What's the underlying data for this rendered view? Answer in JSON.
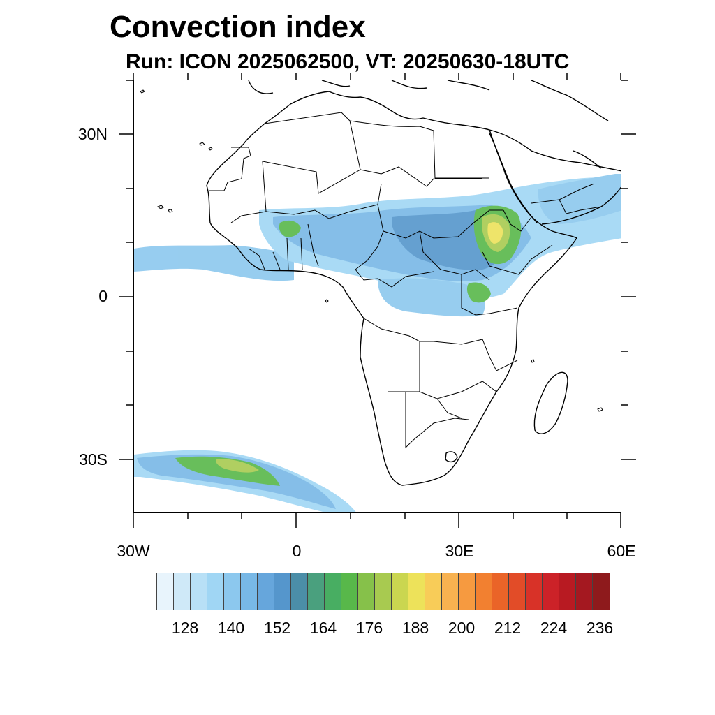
{
  "header": {
    "title": "Convection index",
    "subtitle": "Run: ICON 2025062500,  VT: 20250630-18UTC"
  },
  "map": {
    "projection": "cylindrical-equidistant",
    "lon_range": [
      -30,
      60
    ],
    "lat_range": [
      -40,
      40
    ],
    "lat_labels": [
      "30N",
      "0",
      "30S"
    ],
    "lon_labels": [
      "30W",
      "0",
      "30E",
      "60E"
    ],
    "lat_label_values": [
      30,
      0,
      -30
    ],
    "lon_label_values": [
      -30,
      0,
      30,
      60
    ],
    "coastline_color": "#000000",
    "field_palette_low": "#c8e6f8",
    "field_palette_mid": "#4fb850",
    "field_palette_high": "#f0e050"
  },
  "colorbar": {
    "labels": [
      "128",
      "140",
      "152",
      "164",
      "176",
      "188",
      "200",
      "212",
      "224",
      "236"
    ],
    "colors": [
      "#ffffff",
      "#e8f4fc",
      "#cfe9f8",
      "#b8e0f6",
      "#a0d6f4",
      "#8cc8ee",
      "#78b8e6",
      "#66a6dc",
      "#5596cc",
      "#4b8ea8",
      "#4aa07e",
      "#48ae62",
      "#58b84a",
      "#86c14a",
      "#a8ca50",
      "#cad650",
      "#ede25a",
      "#f8cc58",
      "#f8b250",
      "#f69a40",
      "#f28030",
      "#ea6428",
      "#e24c28",
      "#d83228",
      "#cc2228",
      "#b81a22",
      "#a41820",
      "#8e1a1c"
    ]
  }
}
